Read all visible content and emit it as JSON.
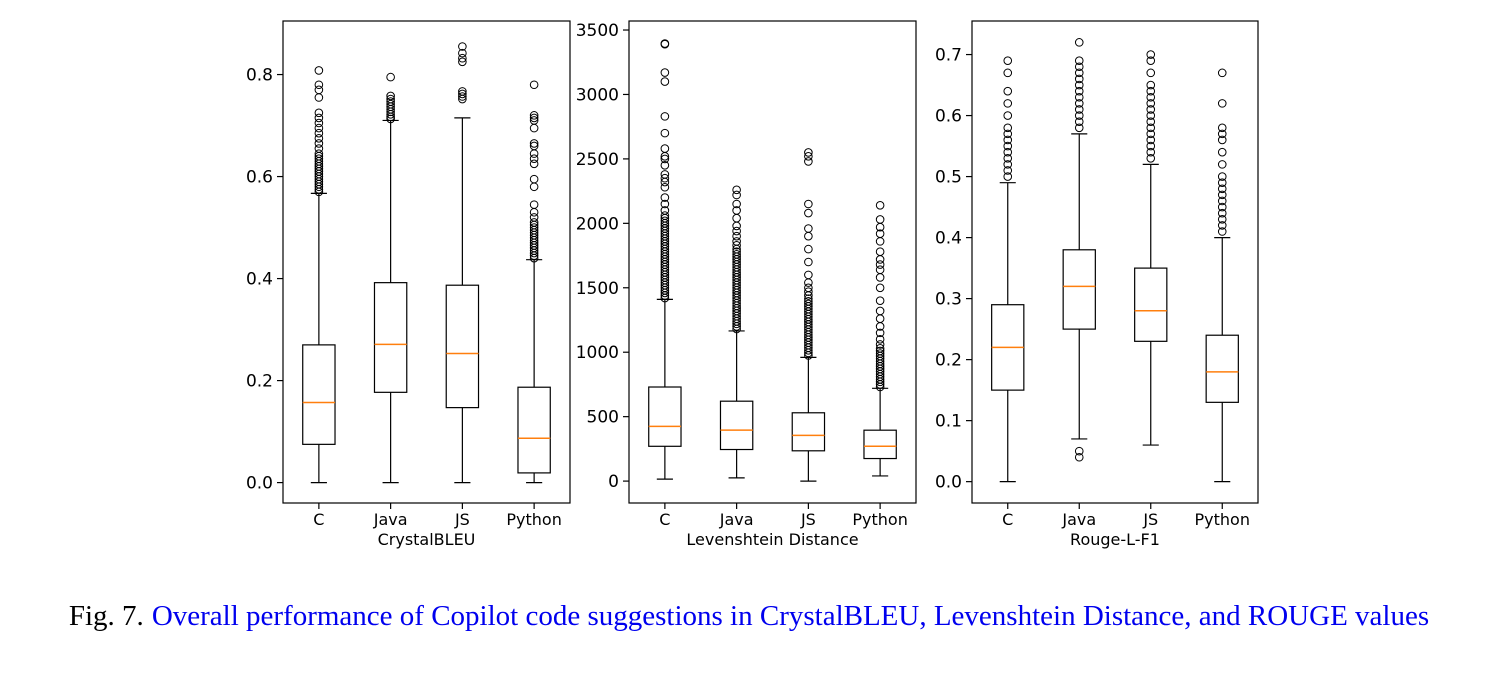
{
  "caption": {
    "label": "Fig. 7.",
    "text": "Overall performance of Copilot code suggestions in CrystalBLEU, Levenshtein Distance, and ROUGE values"
  },
  "colors": {
    "median": "#ff7f0e",
    "box": "#000000",
    "caption_text": "#0000ee",
    "caption_label": "#000000"
  },
  "chart_data": [
    {
      "type": "box",
      "xlabel": "CrystalBLEU",
      "ylabel": "",
      "categories": [
        "C",
        "Java",
        "JS",
        "Python"
      ],
      "ylim": [
        -0.04,
        0.905
      ],
      "yticks": [
        0.0,
        0.2,
        0.4,
        0.6,
        0.8
      ],
      "ytick_labels": [
        "0.0",
        "0.2",
        "0.4",
        "0.6",
        "0.8"
      ],
      "boxes": [
        {
          "category": "C",
          "whisker_low": 0.0,
          "q1": 0.075,
          "median": 0.157,
          "q3": 0.27,
          "whisker_high": 0.567,
          "outliers": [
            0.57,
            0.575,
            0.58,
            0.585,
            0.59,
            0.595,
            0.6,
            0.605,
            0.61,
            0.615,
            0.62,
            0.625,
            0.63,
            0.635,
            0.64,
            0.645,
            0.655,
            0.665,
            0.675,
            0.685,
            0.695,
            0.705,
            0.715,
            0.725,
            0.755,
            0.77,
            0.78,
            0.808
          ]
        },
        {
          "category": "Java",
          "whisker_low": 0.0,
          "q1": 0.177,
          "median": 0.271,
          "q3": 0.392,
          "whisker_high": 0.71,
          "outliers": [
            0.713,
            0.717,
            0.722,
            0.727,
            0.732,
            0.737,
            0.742,
            0.747,
            0.752,
            0.758,
            0.795
          ]
        },
        {
          "category": "JS",
          "whisker_low": 0.0,
          "q1": 0.147,
          "median": 0.253,
          "q3": 0.387,
          "whisker_high": 0.715,
          "outliers": [
            0.752,
            0.757,
            0.762,
            0.767,
            0.825,
            0.832,
            0.842,
            0.855
          ]
        },
        {
          "category": "Python",
          "whisker_low": 0.0,
          "q1": 0.019,
          "median": 0.087,
          "q3": 0.187,
          "whisker_high": 0.437,
          "outliers": [
            0.44,
            0.445,
            0.45,
            0.455,
            0.46,
            0.465,
            0.47,
            0.475,
            0.48,
            0.485,
            0.49,
            0.495,
            0.5,
            0.505,
            0.51,
            0.52,
            0.53,
            0.545,
            0.58,
            0.595,
            0.625,
            0.635,
            0.645,
            0.66,
            0.665,
            0.695,
            0.71,
            0.715,
            0.72,
            0.78
          ]
        }
      ]
    },
    {
      "type": "box",
      "xlabel": "Levenshtein Distance",
      "ylabel": "",
      "categories": [
        "C",
        "Java",
        "JS",
        "Python"
      ],
      "ylim": [
        -170,
        3570
      ],
      "yticks": [
        0,
        500,
        1000,
        1500,
        2000,
        2500,
        3000,
        3500
      ],
      "ytick_labels": [
        "0",
        "500",
        "1000",
        "1500",
        "2000",
        "2500",
        "3000",
        "3500"
      ],
      "boxes": [
        {
          "category": "C",
          "whisker_low": 15,
          "q1": 270,
          "median": 425,
          "q3": 730,
          "whisker_high": 1410,
          "outliers": [
            1420,
            1440,
            1460,
            1480,
            1500,
            1520,
            1540,
            1560,
            1580,
            1600,
            1620,
            1640,
            1660,
            1680,
            1700,
            1720,
            1740,
            1760,
            1780,
            1800,
            1820,
            1840,
            1860,
            1880,
            1900,
            1920,
            1940,
            1960,
            1980,
            2000,
            2020,
            2040,
            2060,
            2100,
            2150,
            2200,
            2280,
            2320,
            2350,
            2380,
            2450,
            2500,
            2520,
            2580,
            2700,
            2830,
            3100,
            3170,
            3390,
            3395
          ]
        },
        {
          "category": "Java",
          "whisker_low": 25,
          "q1": 245,
          "median": 395,
          "q3": 620,
          "whisker_high": 1165,
          "outliers": [
            1180,
            1200,
            1220,
            1240,
            1260,
            1280,
            1300,
            1320,
            1340,
            1360,
            1380,
            1400,
            1420,
            1440,
            1460,
            1480,
            1500,
            1520,
            1540,
            1560,
            1580,
            1600,
            1620,
            1640,
            1660,
            1680,
            1700,
            1720,
            1740,
            1760,
            1780,
            1800,
            1830,
            1860,
            1900,
            1940,
            1980,
            2040,
            2100,
            2150,
            2220,
            2260
          ]
        },
        {
          "category": "JS",
          "whisker_low": 0,
          "q1": 235,
          "median": 355,
          "q3": 530,
          "whisker_high": 960,
          "outliers": [
            975,
            995,
            1015,
            1035,
            1055,
            1075,
            1095,
            1115,
            1135,
            1155,
            1175,
            1195,
            1215,
            1235,
            1255,
            1275,
            1295,
            1315,
            1335,
            1355,
            1375,
            1395,
            1415,
            1440,
            1470,
            1500,
            1540,
            1600,
            1700,
            1800,
            1900,
            1960,
            2080,
            2150,
            2480,
            2520,
            2550
          ]
        },
        {
          "category": "Python",
          "whisker_low": 40,
          "q1": 175,
          "median": 270,
          "q3": 395,
          "whisker_high": 720,
          "outliers": [
            730,
            750,
            770,
            790,
            810,
            830,
            850,
            870,
            890,
            910,
            930,
            950,
            970,
            990,
            1010,
            1030,
            1060,
            1100,
            1150,
            1200,
            1260,
            1320,
            1400,
            1500,
            1580,
            1640,
            1680,
            1720,
            1780,
            1860,
            1920,
            1970,
            2030,
            2140
          ]
        }
      ]
    },
    {
      "type": "box",
      "xlabel": "Rouge-L-F1",
      "ylabel": "",
      "categories": [
        "C",
        "Java",
        "JS",
        "Python"
      ],
      "ylim": [
        -0.035,
        0.755
      ],
      "yticks": [
        0.0,
        0.1,
        0.2,
        0.3,
        0.4,
        0.5,
        0.6,
        0.7
      ],
      "ytick_labels": [
        "0.0",
        "0.1",
        "0.2",
        "0.3",
        "0.4",
        "0.5",
        "0.6",
        "0.7"
      ],
      "boxes": [
        {
          "category": "C",
          "whisker_low": 0.0,
          "q1": 0.15,
          "median": 0.22,
          "q3": 0.29,
          "whisker_high": 0.49,
          "outliers": [
            0.5,
            0.51,
            0.52,
            0.53,
            0.54,
            0.55,
            0.56,
            0.57,
            0.58,
            0.6,
            0.62,
            0.64,
            0.67,
            0.69
          ]
        },
        {
          "category": "Java",
          "whisker_low": 0.07,
          "q1": 0.25,
          "median": 0.32,
          "q3": 0.38,
          "whisker_high": 0.57,
          "outliers": [
            0.04,
            0.05,
            0.58,
            0.59,
            0.6,
            0.61,
            0.62,
            0.63,
            0.64,
            0.65,
            0.66,
            0.67,
            0.68,
            0.69,
            0.72
          ]
        },
        {
          "category": "JS",
          "whisker_low": 0.06,
          "q1": 0.23,
          "median": 0.28,
          "q3": 0.35,
          "whisker_high": 0.52,
          "outliers": [
            0.53,
            0.54,
            0.55,
            0.56,
            0.57,
            0.58,
            0.59,
            0.6,
            0.61,
            0.62,
            0.63,
            0.64,
            0.65,
            0.67,
            0.69,
            0.7
          ]
        },
        {
          "category": "Python",
          "whisker_low": 0.0,
          "q1": 0.13,
          "median": 0.18,
          "q3": 0.24,
          "whisker_high": 0.4,
          "outliers": [
            0.41,
            0.42,
            0.43,
            0.44,
            0.45,
            0.46,
            0.47,
            0.48,
            0.49,
            0.5,
            0.52,
            0.54,
            0.56,
            0.57,
            0.58,
            0.62,
            0.67
          ]
        }
      ]
    }
  ]
}
